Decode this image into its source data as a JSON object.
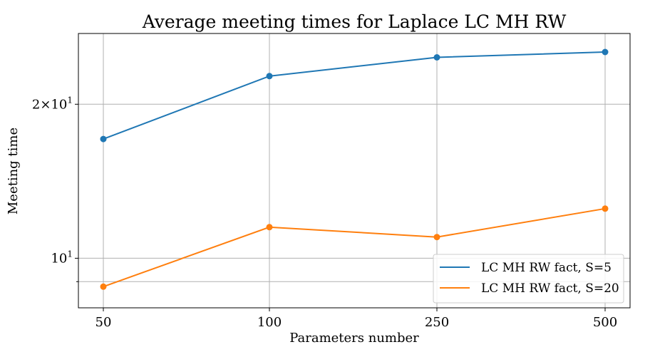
{
  "chart_data": {
    "type": "line",
    "title": "Average meeting times for Laplace LC MH RW",
    "xlabel": "Parameters number",
    "ylabel": "Meeting time",
    "x": [
      50,
      100,
      250,
      500
    ],
    "x_tick_labels": [
      "50",
      "100",
      "250",
      "500"
    ],
    "x_scale": "categorical",
    "y_scale": "log",
    "ylim": [
      8.0,
      27.5
    ],
    "y_ticks": [
      {
        "value": 10,
        "label_base": "10",
        "label_exp": "1"
      },
      {
        "value": 20,
        "label_base": "2×10",
        "label_exp": "1"
      }
    ],
    "y_minor_ticks": [
      9
    ],
    "grid": true,
    "legend_placement": "lower-right",
    "series": [
      {
        "name": "LC MH RW fact, S=5",
        "color": "#1f77b4",
        "values": [
          17.1,
          22.7,
          24.7,
          25.3
        ]
      },
      {
        "name": "LC MH RW fact, S=20",
        "color": "#ff7f0e",
        "values": [
          8.8,
          11.5,
          11.0,
          12.5
        ]
      }
    ]
  }
}
